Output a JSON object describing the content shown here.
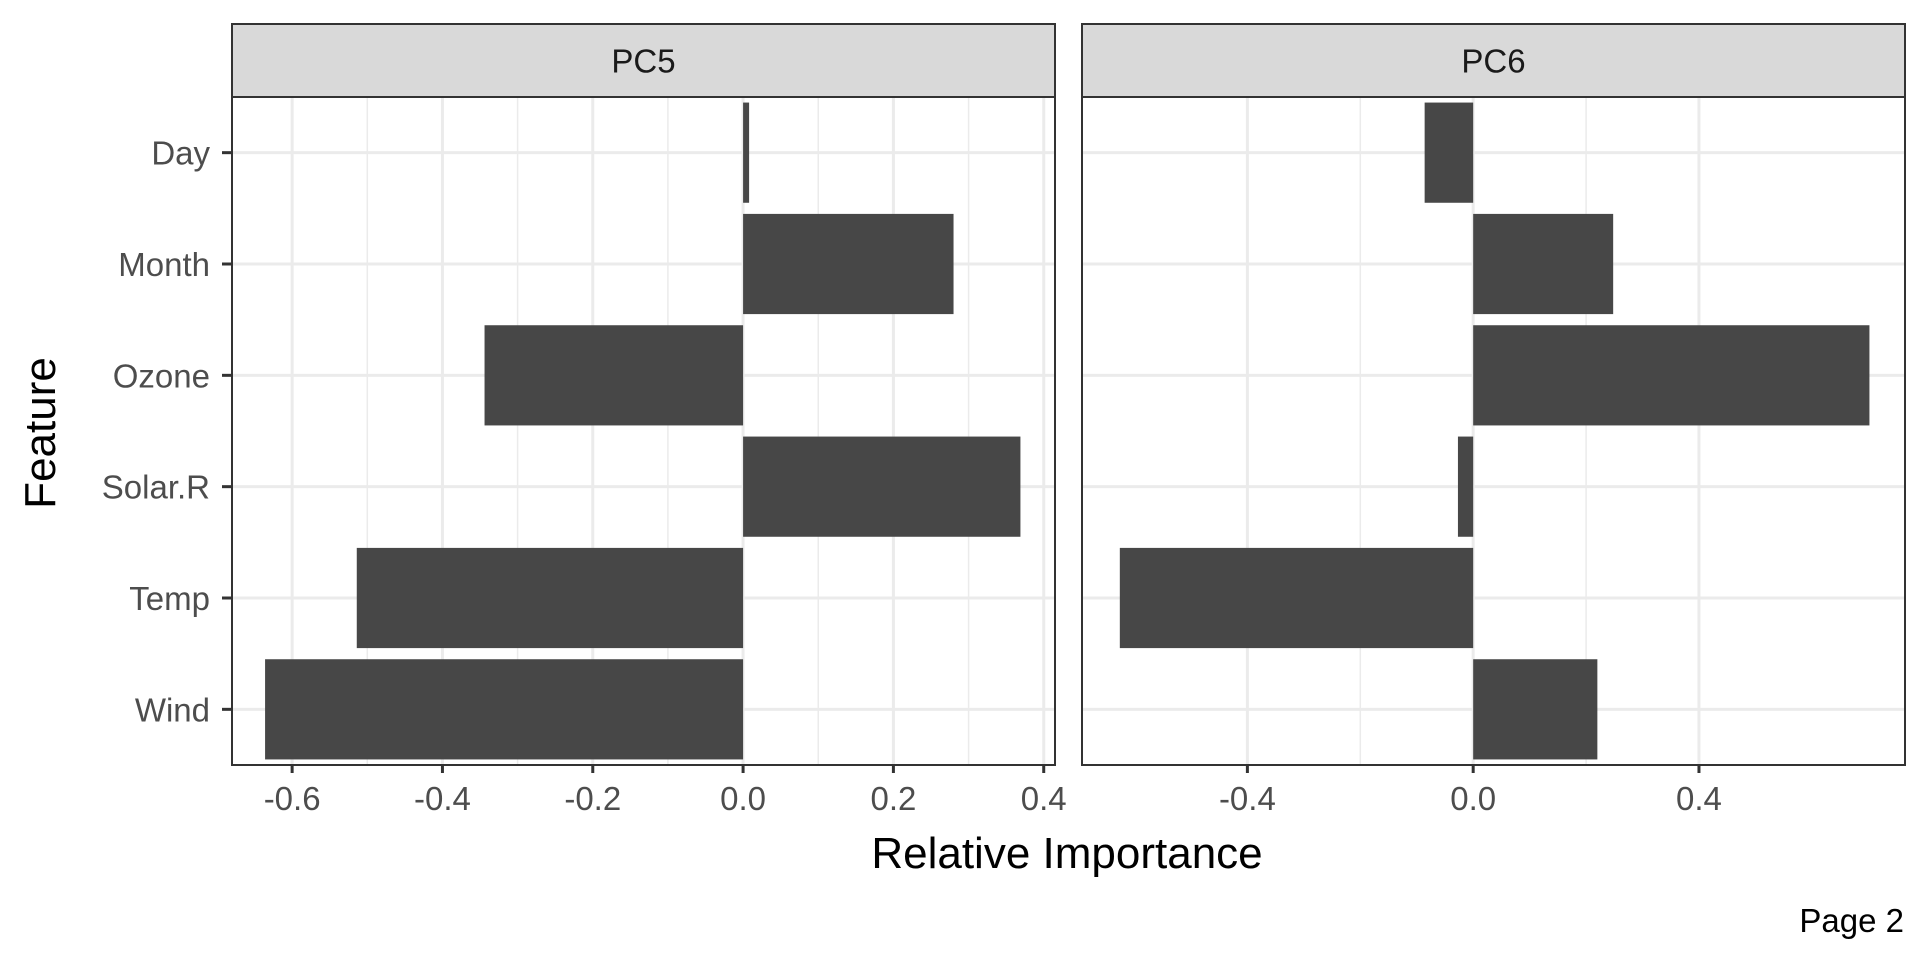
{
  "chart_data": {
    "type": "bar",
    "orientation": "horizontal",
    "categories": [
      "Wind",
      "Temp",
      "Solar.R",
      "Ozone",
      "Month",
      "Day"
    ],
    "xlabel": "Relative Importance",
    "ylabel": "Feature",
    "grid": true,
    "facets": [
      {
        "title": "PC5",
        "xlim": [
          -0.68,
          0.415
        ],
        "xticks": [
          -0.6,
          -0.4,
          -0.2,
          0.0,
          0.2,
          0.4
        ],
        "xtick_labels": [
          "-0.6",
          "-0.4",
          "-0.2",
          "0.0",
          "0.2",
          "0.4"
        ],
        "values": [
          -0.636,
          -0.514,
          0.369,
          -0.344,
          0.28,
          0.008
        ]
      },
      {
        "title": "PC6",
        "xlim": [
          -0.693,
          0.765
        ],
        "xticks": [
          -0.4,
          0.0,
          0.4
        ],
        "xtick_labels": [
          "-0.4",
          "0.0",
          "0.4"
        ],
        "values": [
          0.22,
          -0.626,
          -0.027,
          0.702,
          0.248,
          -0.086
        ]
      }
    ]
  },
  "footer": {
    "page_label": "Page 2"
  }
}
